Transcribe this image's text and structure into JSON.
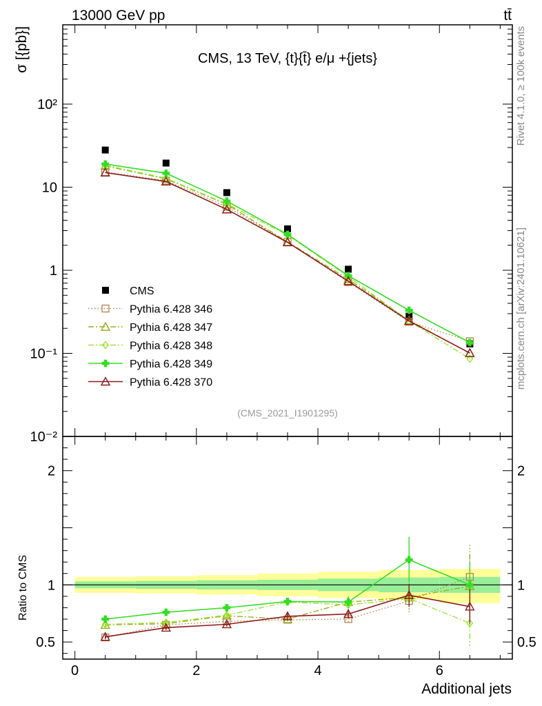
{
  "header": {
    "left": "13000 GeV pp",
    "right": "tt̄"
  },
  "side_labels": {
    "rivet": "Rivet 4.1.0, ≥ 100k events",
    "source": "mcplots.cern.ch [arXiv:2401.10621]"
  },
  "analysis_id": "(CMS_2021_I1901295)",
  "colors": {
    "cms": "#000000",
    "p346": "#b5834d",
    "p347": "#9aae1d",
    "p348": "#99e62e",
    "p349": "#33dd22",
    "p370": "#8b1a1a",
    "band_inner": "#99ee99",
    "band_outer": "#ffff99"
  },
  "chart_data": [
    {
      "type": "line",
      "title": "CMS, 13 TeV, {t}{t̄} e/μ +{jets}",
      "ylabel": "σ [{pb}]",
      "xlabel": "",
      "yscale": "log",
      "ylim": [
        0.01,
        900
      ],
      "xlim": [
        -0.2,
        7.2
      ],
      "yticks": [
        {
          "value": 0.01,
          "label": "10⁻²"
        },
        {
          "value": 0.1,
          "label": "10⁻¹"
        },
        {
          "value": 1,
          "label": "1"
        },
        {
          "value": 10,
          "label": "10"
        },
        {
          "value": 100,
          "label": "10²"
        }
      ],
      "x": [
        0.5,
        1.5,
        2.5,
        3.5,
        4.5,
        5.5,
        6.5
      ],
      "series": [
        {
          "name": "CMS",
          "key": "cms",
          "marker": "square",
          "line": "none",
          "values": [
            28,
            19.5,
            8.6,
            3.15,
            1.03,
            0.28,
            0.13
          ]
        },
        {
          "name": "Pythia 6.428 346",
          "key": "p346",
          "marker": "square-open",
          "line": "dotted",
          "values": [
            15.2,
            12.0,
            5.8,
            2.2,
            0.72,
            0.24,
            0.14
          ]
        },
        {
          "name": "Pythia 6.428 347",
          "key": "p347",
          "marker": "triangle-open",
          "line": "dashdot",
          "values": [
            18.0,
            12.6,
            6.2,
            2.2,
            0.78,
            0.25,
            0.1
          ]
        },
        {
          "name": "Pythia 6.428 348",
          "key": "p348",
          "marker": "diamond-open",
          "line": "dashdot",
          "values": [
            18.4,
            12.8,
            6.3,
            2.65,
            0.84,
            0.245,
            0.086
          ]
        },
        {
          "name": "Pythia 6.428 349",
          "key": "p349",
          "marker": "cross",
          "line": "solid",
          "values": [
            19.0,
            14.7,
            6.8,
            2.7,
            0.86,
            0.33,
            0.135
          ]
        },
        {
          "name": "Pythia 6.428 370",
          "key": "p370",
          "marker": "triangle-open",
          "line": "solid",
          "values": [
            15.0,
            11.7,
            5.4,
            2.17,
            0.74,
            0.245,
            0.101
          ]
        }
      ]
    },
    {
      "type": "line",
      "title": "",
      "ylabel": "Ratio to CMS",
      "xlabel": "Additional jets",
      "yscale": "linear",
      "ylim": [
        0.35,
        2.3
      ],
      "xlim": [
        -0.2,
        7.2
      ],
      "yticks": [
        {
          "value": 0.5,
          "label": "0.5"
        },
        {
          "value": 1,
          "label": "1"
        },
        {
          "value": 2,
          "label": "2"
        }
      ],
      "xticks": [
        {
          "value": 0,
          "label": "0"
        },
        {
          "value": 2,
          "label": "2"
        },
        {
          "value": 4,
          "label": "4"
        },
        {
          "value": 6,
          "label": "6"
        }
      ],
      "bands": [
        {
          "x0": 0,
          "x1": 1,
          "inner": [
            0.97,
            1.03
          ],
          "outer": [
            0.93,
            1.07
          ]
        },
        {
          "x0": 1,
          "x1": 2,
          "inner": [
            0.965,
            1.035
          ],
          "outer": [
            0.925,
            1.075
          ]
        },
        {
          "x0": 2,
          "x1": 3,
          "inner": [
            0.96,
            1.04
          ],
          "outer": [
            0.915,
            1.085
          ]
        },
        {
          "x0": 3,
          "x1": 4,
          "inner": [
            0.955,
            1.045
          ],
          "outer": [
            0.9,
            1.1
          ]
        },
        {
          "x0": 4,
          "x1": 5,
          "inner": [
            0.945,
            1.055
          ],
          "outer": [
            0.885,
            1.115
          ]
        },
        {
          "x0": 5,
          "x1": 6,
          "inner": [
            0.935,
            1.065
          ],
          "outer": [
            0.87,
            1.13
          ]
        },
        {
          "x0": 6,
          "x1": 7,
          "inner": [
            0.93,
            1.07
          ],
          "outer": [
            0.84,
            1.14
          ]
        }
      ],
      "x": [
        0.5,
        1.5,
        2.5,
        3.5,
        4.5,
        5.5,
        6.5
      ],
      "series": [
        {
          "name": "Pythia 6.428 346",
          "key": "p346",
          "marker": "square-open",
          "line": "dotted",
          "values": [
            0.54,
            0.65,
            0.68,
            0.695,
            0.7,
            0.86,
            1.07
          ],
          "err": [
            0.02,
            0.02,
            0.02,
            0.03,
            0.04,
            0.1,
            0.28
          ]
        },
        {
          "name": "Pythia 6.428 347",
          "key": "p347",
          "marker": "triangle-open",
          "line": "dashdot",
          "values": [
            0.65,
            0.66,
            0.73,
            0.7,
            0.85,
            0.89,
            0.99
          ],
          "err": [
            0.02,
            0.02,
            0.02,
            0.03,
            0.04,
            0.1,
            0.28
          ]
        },
        {
          "name": "Pythia 6.428 348",
          "key": "p348",
          "marker": "diamond-open",
          "line": "dashdot",
          "values": [
            0.655,
            0.67,
            0.735,
            0.85,
            0.825,
            0.88,
            0.665
          ],
          "err": [
            0.02,
            0.02,
            0.02,
            0.03,
            0.04,
            0.1,
            0.2
          ]
        },
        {
          "name": "Pythia 6.428 349",
          "key": "p349",
          "marker": "cross",
          "line": "solid",
          "values": [
            0.7,
            0.76,
            0.8,
            0.855,
            0.85,
            1.22,
            1.0
          ],
          "err": [
            0.02,
            0.02,
            0.02,
            0.03,
            0.05,
            0.2,
            0.2
          ]
        },
        {
          "name": "Pythia 6.428 370",
          "key": "p370",
          "marker": "triangle-open",
          "line": "solid",
          "values": [
            0.545,
            0.625,
            0.655,
            0.725,
            0.745,
            0.91,
            0.81
          ],
          "err": [
            0.02,
            0.02,
            0.02,
            0.03,
            0.04,
            0.1,
            0.15
          ]
        }
      ]
    }
  ]
}
